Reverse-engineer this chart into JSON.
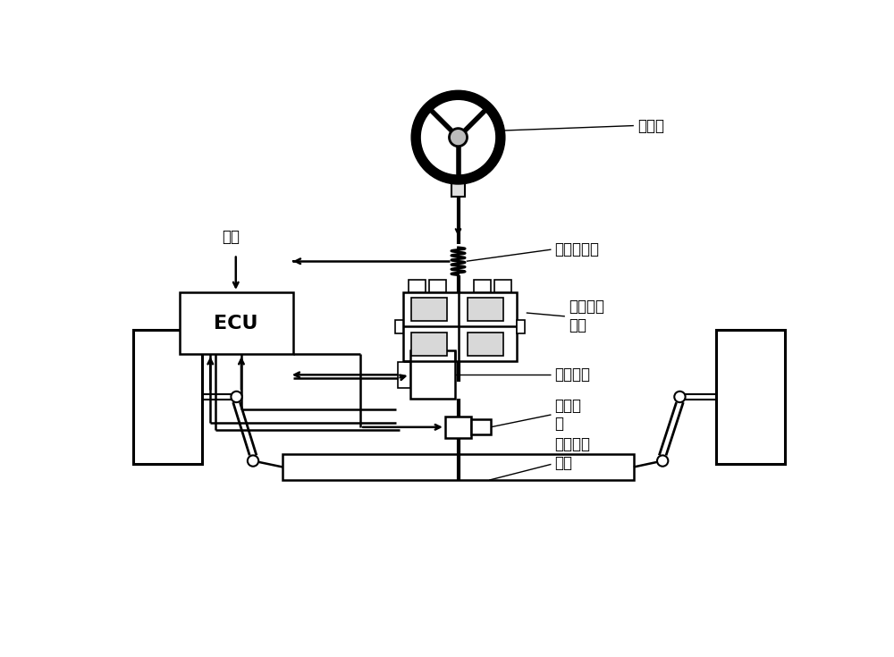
{
  "bg_color": "#ffffff",
  "line_color": "#000000",
  "lw": 1.8,
  "labels": {
    "steering_wheel": "转向盘",
    "torque_sensor": "转矩传感器",
    "planetary_gear": "双行星齿\n轮系",
    "steering_motor": "转向电机",
    "assist_motor": "助力电\n机",
    "rack_pinion": "齿轮齿条\n机构",
    "ecu": "ECU",
    "vehicle_speed": "车速"
  },
  "font_size": 12
}
